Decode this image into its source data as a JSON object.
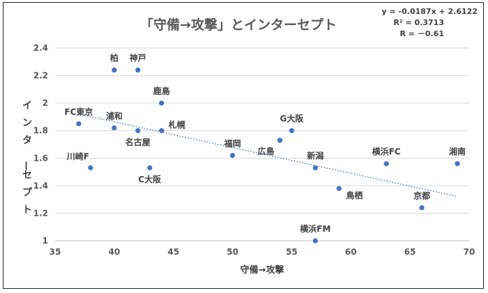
{
  "chart_data": {
    "type": "scatter",
    "title": "「守備→攻撃」とインターセプト",
    "xlabel": "守備→攻撃",
    "ylabel": "インターセプト",
    "xlim": [
      35,
      70
    ],
    "ylim": [
      1,
      2.4
    ],
    "x_ticks": [
      35,
      40,
      45,
      50,
      55,
      60,
      65,
      70
    ],
    "y_ticks": [
      1,
      1.2,
      1.4,
      1.6,
      1.8,
      2,
      2.2,
      2.4
    ],
    "x_tick_labels": [
      "35",
      "40",
      "45",
      "50",
      "55",
      "60",
      "65",
      "70"
    ],
    "y_tick_labels": [
      "1",
      "1.2",
      "1.4",
      "1.6",
      "1.8",
      "2",
      "2.2",
      "2.4"
    ],
    "grid": "horizontal",
    "trendline": {
      "type": "linear",
      "slope": -0.0187,
      "intercept": 2.6122,
      "x_from": 37,
      "x_to": 69,
      "style": "dotted"
    },
    "equation_text": "y = -0.0187x + 2.6122",
    "r2_text": "R² = 0.3713",
    "r_text": "R = －0.61",
    "points": [
      {
        "label": "柏",
        "x": 40,
        "y": 2.24,
        "label_pos": "above"
      },
      {
        "label": "神戸",
        "x": 42,
        "y": 2.24,
        "label_pos": "above"
      },
      {
        "label": "鹿島",
        "x": 44,
        "y": 2.0,
        "label_pos": "above"
      },
      {
        "label": "FC東京",
        "x": 37,
        "y": 1.85,
        "label_pos": "above"
      },
      {
        "label": "浦和",
        "x": 40,
        "y": 1.82,
        "label_pos": "above"
      },
      {
        "label": "札幌",
        "x": 44,
        "y": 1.8,
        "label_pos": "above-right"
      },
      {
        "label": "名古屋",
        "x": 42,
        "y": 1.8,
        "label_pos": "below"
      },
      {
        "label": "川崎F",
        "x": 38,
        "y": 1.53,
        "label_pos": "above-left"
      },
      {
        "label": "C大阪",
        "x": 43,
        "y": 1.53,
        "label_pos": "below"
      },
      {
        "label": "福岡",
        "x": 50,
        "y": 1.62,
        "label_pos": "above"
      },
      {
        "label": "広島",
        "x": 54,
        "y": 1.73,
        "label_pos": "below-left"
      },
      {
        "label": "G大阪",
        "x": 55,
        "y": 1.8,
        "label_pos": "above"
      },
      {
        "label": "新潟",
        "x": 57,
        "y": 1.53,
        "label_pos": "above"
      },
      {
        "label": "鳥栖",
        "x": 59,
        "y": 1.38,
        "label_pos": "below-right"
      },
      {
        "label": "横浜FC",
        "x": 63,
        "y": 1.56,
        "label_pos": "above"
      },
      {
        "label": "湘南",
        "x": 69,
        "y": 1.56,
        "label_pos": "above"
      },
      {
        "label": "京都",
        "x": 66,
        "y": 1.24,
        "label_pos": "above"
      },
      {
        "label": "横浜FM",
        "x": 57,
        "y": 1.0,
        "label_pos": "above"
      }
    ],
    "colors": {
      "point": "#4472C4",
      "trendline": "#4472C4",
      "grid": "#D9D9D9",
      "axis": "#BFBFBF"
    }
  }
}
